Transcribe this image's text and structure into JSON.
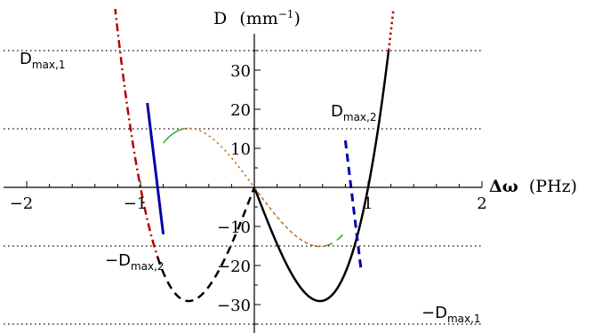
{
  "chart_data": {
    "type": "line",
    "title": "",
    "xlabel": {
      "symbol": "Δω",
      "unit": "(PHz)"
    },
    "ylabel": {
      "symbol": "D",
      "unit": "(mm",
      "exp": "−1",
      "close": ")"
    },
    "xlim": [
      -2,
      2
    ],
    "ylim": [
      -36,
      36
    ],
    "xticks": [
      -2,
      -1,
      1,
      2
    ],
    "xtick_labels": [
      "−2",
      "−1",
      "1",
      "2"
    ],
    "yticks": [
      -30,
      -20,
      -10,
      10,
      20,
      30
    ],
    "ytick_labels": [
      "−30",
      "−20",
      "−10",
      "10",
      "20",
      "30"
    ],
    "reference_lines": [
      35,
      15,
      -15,
      -35
    ],
    "annotations": [
      {
        "id": "dmax1-pos",
        "prefix": "",
        "base": "D",
        "sub": "max,1",
        "x": -1.85,
        "y": 35
      },
      {
        "id": "dmax2-pos",
        "prefix": "",
        "base": "D",
        "sub": "max,2",
        "x": 0.78,
        "y": 15
      },
      {
        "id": "dmax2-neg",
        "prefix": "−",
        "base": "D",
        "sub": "max,2",
        "x": -1.43,
        "y": -15
      },
      {
        "id": "dmax1-neg",
        "prefix": "−",
        "base": "D",
        "sub": "max,1",
        "x": 1.62,
        "y": -35
      }
    ],
    "curve_params": {
      "D_max1": 35,
      "omega_peak1": 1.18,
      "D_max2": 15,
      "omega_peak2": 0.62,
      "steep_k": 24,
      "steep_root": 0.85
    },
    "colors": {
      "red": "#b40000",
      "black": "#000000",
      "olive": "#b8a300",
      "blue": "#0000a8",
      "green": "#2aa82a",
      "orange": "#c87018"
    },
    "series": [
      {
        "id": "dmax1-black-pos",
        "formula": "cubic1",
        "sign": -1,
        "range": [
          -0.85,
          0
        ],
        "color": "black",
        "dash": "dashed",
        "width": 2.5
      },
      {
        "id": "dmax1-black-neg",
        "formula": "cubic1",
        "sign": 1,
        "range": [
          0,
          1.18
        ],
        "color": "black",
        "dash": "solid",
        "width": 2.5
      },
      {
        "id": "dmax1-red-pos",
        "formula": "cubic1",
        "sign": -1,
        "range": [
          -1.8,
          -0.85
        ],
        "color": "red",
        "dash": "dashdot",
        "width": 2.5
      },
      {
        "id": "dmax1-red-neg",
        "formula": "cubic1",
        "sign": 1,
        "range": [
          1.18,
          1.8
        ],
        "color": "red",
        "dash": "dotted",
        "width": 2.5
      },
      {
        "id": "olive-left",
        "formula": "cubic1",
        "sign": -1,
        "range": [
          -2.05,
          -1.8
        ],
        "color": "olive",
        "dash": "dashdot",
        "width": 1.5
      },
      {
        "id": "olive-right",
        "formula": "cubic1",
        "sign": 1,
        "range": [
          1.8,
          2.05
        ],
        "color": "olive",
        "dash": "dotted",
        "width": 1.5
      },
      {
        "id": "dmax2-orange-pos",
        "formula": "cubic2",
        "sign": -1,
        "range": [
          0,
          0.62
        ],
        "color": "orange",
        "dash": "finedash",
        "width": 1.5
      },
      {
        "id": "dmax2-orange-neg",
        "formula": "cubic2",
        "sign": -1,
        "range": [
          -0.62,
          0
        ],
        "color": "orange",
        "dash": "dotted",
        "width": 1.5
      },
      {
        "id": "dmax2-green-pos",
        "formula": "cubic2",
        "sign": -1,
        "range": [
          0.62,
          0.8
        ],
        "color": "green",
        "dash": "dashed",
        "width": 1.5
      },
      {
        "id": "dmax2-green-neg",
        "formula": "cubic2",
        "sign": -1,
        "range": [
          -0.8,
          -0.62
        ],
        "color": "green",
        "dash": "solid",
        "width": 1.5
      },
      {
        "id": "blue-left",
        "formula": "steep",
        "sign": -1,
        "range": [
          -0.94,
          -0.8
        ],
        "color": "blue",
        "dash": "solid",
        "width": 3
      },
      {
        "id": "blue-right",
        "formula": "steep",
        "sign": 1,
        "range": [
          0.8,
          0.94
        ],
        "color": "blue",
        "dash": "dashed",
        "width": 3
      }
    ]
  }
}
